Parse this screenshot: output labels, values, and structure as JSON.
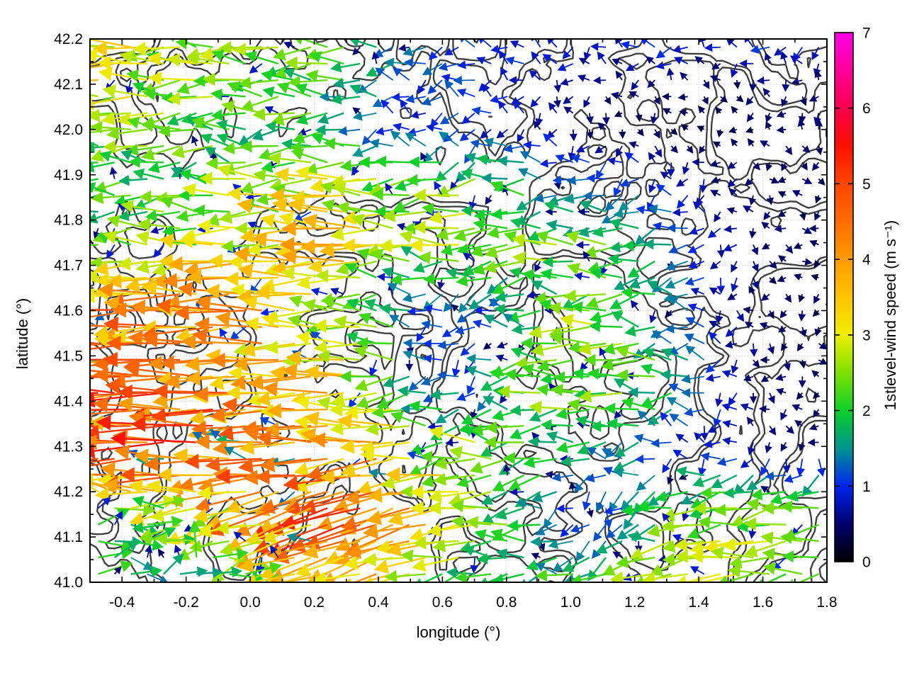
{
  "chart_data": {
    "type": "quiver",
    "title": "",
    "xlabel": "longitude (°)",
    "ylabel": "latitude (°)",
    "xlim": [
      -0.5,
      1.8
    ],
    "ylim": [
      41.0,
      42.2
    ],
    "xtick_values": [
      -0.4,
      -0.2,
      0.0,
      0.2,
      0.4,
      0.6,
      0.8,
      1.0,
      1.2,
      1.4,
      1.6,
      1.8
    ],
    "xtick_labels": [
      "-0.4",
      "-0.2",
      "0.0",
      "0.2",
      "0.4",
      "0.6",
      "0.8",
      "1.0",
      "1.2",
      "1.4",
      "1.6",
      "1.8"
    ],
    "ytick_values": [
      41.0,
      41.1,
      41.2,
      41.3,
      41.4,
      41.5,
      41.6,
      41.7,
      41.8,
      41.9,
      42.0,
      42.1,
      42.2
    ],
    "ytick_labels": [
      "41.0",
      "41.1",
      "41.2",
      "41.3",
      "41.4",
      "41.5",
      "41.6",
      "41.7",
      "41.8",
      "41.9",
      "42.0",
      "42.1",
      "42.2"
    ],
    "x_minor_step": 0.1,
    "y_minor_step": 0.05,
    "grid_style": "dotted",
    "contour_color": "#3d3d3d",
    "colorbar": {
      "label": "1stlevel-wind speed (m s⁻¹)",
      "min": 0,
      "max": 7,
      "tick_values": [
        0,
        1,
        2,
        3,
        4,
        5,
        6,
        7
      ],
      "tick_labels": [
        "0",
        "1",
        "2",
        "3",
        "4",
        "5",
        "6",
        "7"
      ],
      "palette_stops": [
        {
          "v": 0.0,
          "color": "#000000"
        },
        {
          "v": 0.5,
          "color": "#00006e"
        },
        {
          "v": 1.0,
          "color": "#0023ee"
        },
        {
          "v": 1.5,
          "color": "#00958f"
        },
        {
          "v": 2.0,
          "color": "#0bd02b"
        },
        {
          "v": 2.5,
          "color": "#7fe000"
        },
        {
          "v": 3.0,
          "color": "#eeee00"
        },
        {
          "v": 3.5,
          "color": "#ffc400"
        },
        {
          "v": 4.0,
          "color": "#ff9a00"
        },
        {
          "v": 4.5,
          "color": "#ff6c00"
        },
        {
          "v": 5.0,
          "color": "#ff4600"
        },
        {
          "v": 5.5,
          "color": "#ff1000"
        },
        {
          "v": 6.0,
          "color": "#f8004d"
        },
        {
          "v": 6.5,
          "color": "#ff0099"
        },
        {
          "v": 7.0,
          "color": "#ff00ea"
        }
      ]
    },
    "field": {
      "comment_units": "speed in m/s read from arrow colors; dir in degrees (0=east, 90=north, 180=west, 270=south)",
      "lons": [
        -0.5,
        -0.35,
        -0.2,
        -0.05,
        0.1,
        0.25,
        0.4,
        0.55,
        0.7,
        0.85,
        1.0,
        1.15,
        1.3,
        1.45,
        1.6,
        1.8
      ],
      "lats": [
        42.2,
        42.1,
        42.0,
        41.9,
        41.75,
        41.6,
        41.45,
        41.3,
        41.15,
        41.0
      ],
      "speed": [
        [
          3.5,
          3.0,
          2.6,
          2.5,
          2.2,
          2.5,
          1.6,
          1.2,
          1.0,
          1.0,
          1.0,
          0.8,
          1.0,
          0.8,
          1.0,
          0.8
        ],
        [
          3.0,
          2.8,
          2.5,
          2.2,
          2.5,
          2.0,
          1.5,
          1.0,
          1.0,
          0.8,
          0.6,
          0.5,
          0.5,
          0.4,
          0.5,
          0.5
        ],
        [
          2.5,
          2.5,
          2.2,
          2.0,
          2.0,
          1.8,
          1.2,
          1.0,
          1.0,
          0.8,
          0.5,
          0.4,
          0.4,
          0.3,
          0.4,
          0.5
        ],
        [
          1.6,
          2.0,
          2.0,
          2.2,
          2.5,
          3.0,
          2.5,
          2.0,
          2.2,
          1.5,
          1.2,
          1.0,
          0.8,
          0.5,
          0.5,
          0.4
        ],
        [
          2.0,
          2.2,
          2.5,
          3.0,
          3.2,
          3.5,
          3.0,
          2.5,
          2.5,
          2.5,
          2.2,
          2.0,
          1.5,
          0.8,
          0.5,
          0.4
        ],
        [
          4.5,
          4.2,
          4.0,
          3.8,
          3.5,
          3.0,
          2.0,
          1.2,
          1.0,
          1.5,
          2.2,
          2.5,
          1.5,
          0.8,
          0.4,
          0.4
        ],
        [
          4.5,
          4.3,
          4.0,
          3.8,
          3.6,
          3.5,
          2.5,
          1.2,
          1.0,
          2.0,
          2.5,
          2.5,
          2.0,
          1.0,
          0.5,
          0.4
        ],
        [
          6.3,
          4.8,
          5.2,
          4.5,
          4.2,
          4.0,
          3.5,
          2.5,
          2.5,
          2.0,
          2.0,
          1.5,
          1.0,
          0.8,
          0.5,
          0.5
        ],
        [
          2.5,
          2.0,
          2.5,
          3.0,
          4.0,
          4.5,
          5.0,
          4.0,
          2.5,
          2.0,
          1.0,
          1.0,
          2.0,
          2.5,
          2.5,
          2.5
        ],
        [
          2.0,
          1.5,
          1.5,
          2.0,
          2.5,
          3.0,
          3.5,
          2.5,
          2.0,
          1.5,
          2.0,
          2.2,
          2.5,
          2.5,
          2.5,
          2.8
        ]
      ],
      "dir_deg": [
        [
          180,
          180,
          178,
          182,
          180,
          178,
          182,
          180,
          176,
          184,
          180,
          178,
          182,
          180,
          184,
          178
        ],
        [
          181,
          179,
          180,
          182,
          178,
          180,
          183,
          177,
          180,
          185,
          205,
          225,
          190,
          235,
          195,
          182
        ],
        [
          180,
          182,
          179,
          180,
          181,
          178,
          183,
          180,
          177,
          182,
          205,
          235,
          255,
          245,
          205,
          188
        ],
        [
          178,
          180,
          181,
          179,
          180,
          178,
          181,
          184,
          200,
          182,
          186,
          192,
          212,
          238,
          255,
          248
        ],
        [
          180,
          179,
          181,
          180,
          182,
          179,
          180,
          178,
          181,
          183,
          179,
          183,
          186,
          202,
          238,
          258
        ],
        [
          180,
          182,
          179,
          181,
          178,
          180,
          181,
          186,
          200,
          184,
          179,
          177,
          181,
          202,
          248,
          265
        ],
        [
          181,
          179,
          182,
          180,
          179,
          178,
          181,
          191,
          199,
          183,
          179,
          181,
          177,
          186,
          228,
          255
        ],
        [
          180,
          183,
          179,
          182,
          180,
          178,
          183,
          181,
          177,
          181,
          179,
          186,
          192,
          202,
          228,
          265
        ],
        [
          12,
          6,
          186,
          194,
          197,
          201,
          199,
          196,
          191,
          186,
          202,
          265,
          196,
          191,
          189,
          186
        ],
        [
          8,
          14,
          18,
          8,
          196,
          201,
          199,
          196,
          191,
          186,
          189,
          191,
          189,
          187,
          186,
          184
        ]
      ]
    }
  }
}
